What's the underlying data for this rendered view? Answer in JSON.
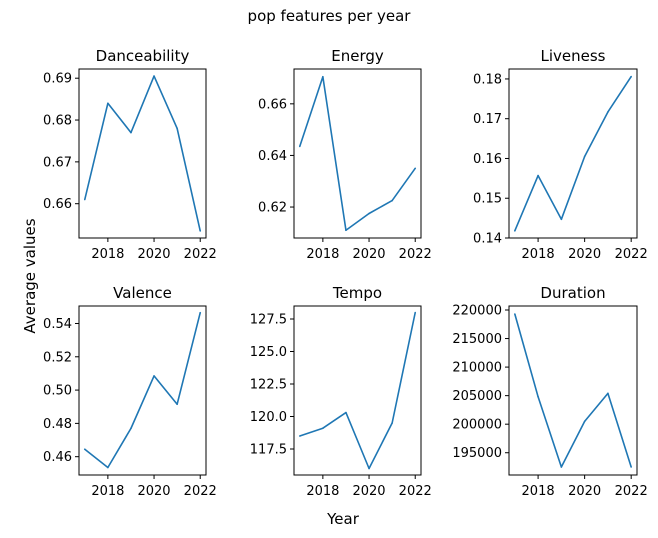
{
  "figure": {
    "suptitle": "pop features per year",
    "supxlabel": "Year",
    "supylabel": "Average values"
  },
  "chart_data": [
    {
      "type": "line",
      "title": "Danceability",
      "x": [
        2017,
        2018,
        2019,
        2020,
        2021,
        2022
      ],
      "y": [
        0.661,
        0.684,
        0.677,
        0.6905,
        0.678,
        0.6535
      ],
      "xlim": [
        2016.75,
        2022.25
      ],
      "ylim": [
        0.6518,
        0.6922
      ],
      "xticks": [
        2018,
        2020,
        2022
      ],
      "xticklabels": [
        "2018",
        "2020",
        "2022"
      ],
      "yticks": [
        0.66,
        0.67,
        0.68,
        0.69
      ],
      "yticklabels": [
        "0.66",
        "0.67",
        "0.68",
        "0.69"
      ]
    },
    {
      "type": "line",
      "title": "Energy",
      "x": [
        2017,
        2018,
        2019,
        2020,
        2021,
        2022
      ],
      "y": [
        0.6435,
        0.6705,
        0.611,
        0.6175,
        0.6225,
        0.635
      ],
      "xlim": [
        2016.75,
        2022.25
      ],
      "ylim": [
        0.608,
        0.6735
      ],
      "xticks": [
        2018,
        2020,
        2022
      ],
      "xticklabels": [
        "2018",
        "2020",
        "2022"
      ],
      "yticks": [
        0.62,
        0.64,
        0.66
      ],
      "yticklabels": [
        "0.62",
        "0.64",
        "0.66"
      ]
    },
    {
      "type": "line",
      "title": "Liveness",
      "x": [
        2017,
        2018,
        2019,
        2020,
        2021,
        2022
      ],
      "y": [
        0.1418,
        0.1557,
        0.1447,
        0.1605,
        0.1717,
        0.1806
      ],
      "xlim": [
        2016.75,
        2022.25
      ],
      "ylim": [
        0.14,
        0.1825
      ],
      "xticks": [
        2018,
        2020,
        2022
      ],
      "xticklabels": [
        "2018",
        "2020",
        "2022"
      ],
      "yticks": [
        0.14,
        0.15,
        0.16,
        0.17,
        0.18
      ],
      "yticklabels": [
        "0.14",
        "0.15",
        "0.16",
        "0.17",
        "0.18"
      ]
    },
    {
      "type": "line",
      "title": "Valence",
      "x": [
        2017,
        2018,
        2019,
        2020,
        2021,
        2022
      ],
      "y": [
        0.4645,
        0.4535,
        0.477,
        0.5085,
        0.4915,
        0.5465
      ],
      "xlim": [
        2016.75,
        2022.25
      ],
      "ylim": [
        0.449,
        0.5505
      ],
      "xticks": [
        2018,
        2020,
        2022
      ],
      "xticklabels": [
        "2018",
        "2020",
        "2022"
      ],
      "yticks": [
        0.46,
        0.48,
        0.5,
        0.52,
        0.54
      ],
      "yticklabels": [
        "0.46",
        "0.48",
        "0.50",
        "0.52",
        "0.54"
      ]
    },
    {
      "type": "line",
      "title": "Tempo",
      "x": [
        2017,
        2018,
        2019,
        2020,
        2021,
        2022
      ],
      "y": [
        118.5,
        119.1,
        120.3,
        116.0,
        119.5,
        128.0
      ],
      "xlim": [
        2016.75,
        2022.25
      ],
      "ylim": [
        115.5,
        128.5
      ],
      "xticks": [
        2018,
        2020,
        2022
      ],
      "xticklabels": [
        "2018",
        "2020",
        "2022"
      ],
      "yticks": [
        117.5,
        120.0,
        122.5,
        125.0,
        127.5
      ],
      "yticklabels": [
        "117.5",
        "120.0",
        "122.5",
        "125.0",
        "127.5"
      ]
    },
    {
      "type": "line",
      "title": "Duration",
      "x": [
        2017,
        2018,
        2019,
        2020,
        2021,
        2022
      ],
      "y": [
        219300,
        204800,
        192500,
        200500,
        205400,
        192500
      ],
      "xlim": [
        2016.75,
        2022.25
      ],
      "ylim": [
        191100,
        220700
      ],
      "xticks": [
        2018,
        2020,
        2022
      ],
      "xticklabels": [
        "2018",
        "2020",
        "2022"
      ],
      "yticks": [
        195000,
        200000,
        205000,
        210000,
        215000,
        220000
      ],
      "yticklabels": [
        "195000",
        "200000",
        "205000",
        "210000",
        "215000",
        "220000"
      ]
    }
  ],
  "style": {
    "line_color": "#1f77b4",
    "axis_color": "#000000"
  }
}
